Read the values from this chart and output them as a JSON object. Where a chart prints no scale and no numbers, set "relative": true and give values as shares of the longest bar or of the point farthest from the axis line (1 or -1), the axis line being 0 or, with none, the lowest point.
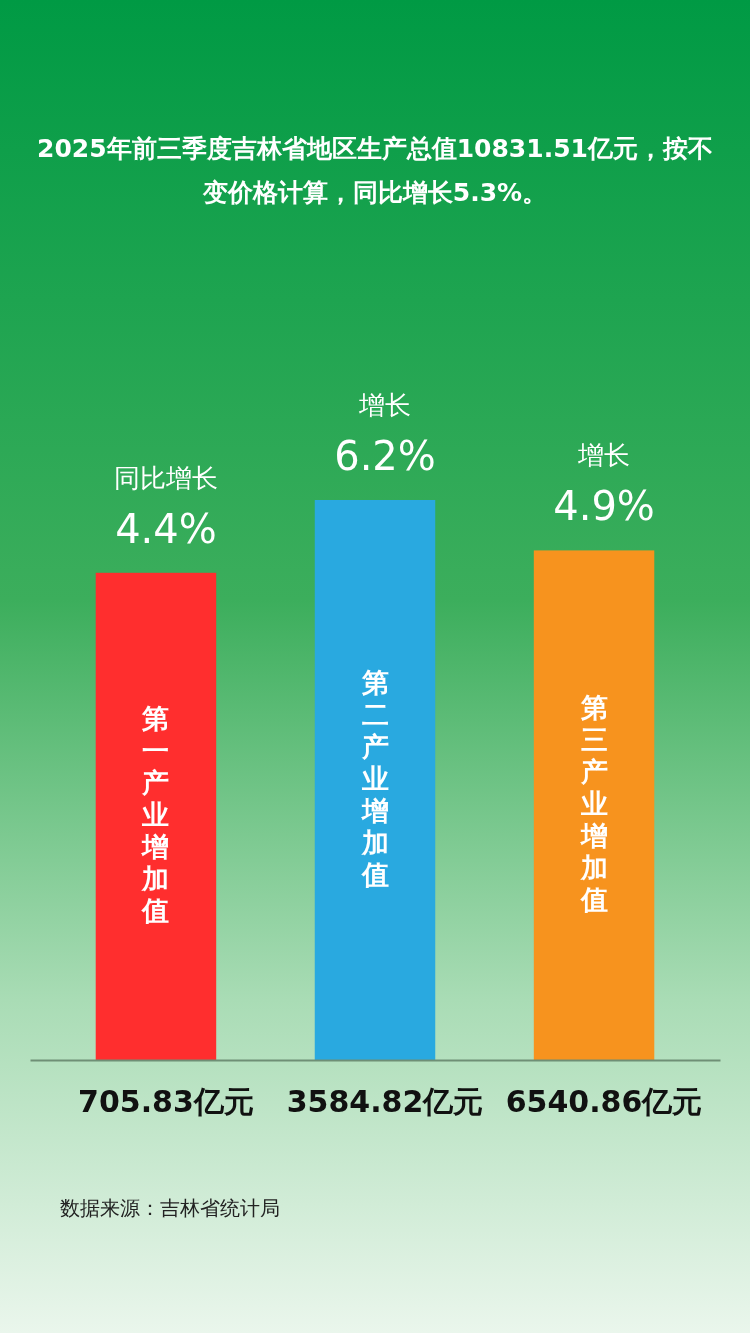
{
  "chart_data": {
    "type": "bar",
    "title": "2025年前三季度吉林省地区生产总值10831.51亿元，按不变价格计算，同比增长5.3%。",
    "categories": [
      "第一产业增加值",
      "第二产业增加值",
      "第三产业增加值"
    ],
    "relative": true,
    "values": [
      0.87,
      1,
      0.91
    ],
    "colors": [
      "#ff2e2e",
      "#29a9e0",
      "#f7931e"
    ],
    "annotations": [
      "同比增长",
      "4.4%",
      "705.83亿元",
      "增长",
      "6.2%",
      "3584.82亿元",
      "增长",
      "4.9%",
      "6540.86亿元",
      "数据来源：吉林省统计局"
    ]
  }
}
